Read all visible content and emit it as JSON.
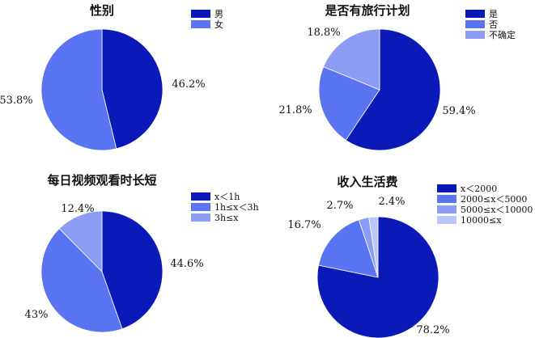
{
  "chart_data": [
    {
      "type": "pie",
      "title": "性别",
      "categories": [
        "男",
        "女"
      ],
      "values": [
        46.2,
        53.8
      ],
      "labels": [
        "46.2%",
        "53.8%"
      ],
      "colors": [
        "#0a1ab8",
        "#5874f0"
      ],
      "start_angle_deg": 0,
      "direction": "clockwise",
      "legend_position": "top-right"
    },
    {
      "type": "pie",
      "title": "是否有旅行计划",
      "categories": [
        "是",
        "否",
        "不确定"
      ],
      "values": [
        59.4,
        21.8,
        18.8
      ],
      "labels": [
        "59.4%",
        "21.8%",
        "18.8%"
      ],
      "colors": [
        "#0a1ab8",
        "#5874f0",
        "#8c9cf4"
      ],
      "start_angle_deg": 0,
      "direction": "clockwise",
      "legend_position": "top-right"
    },
    {
      "type": "pie",
      "title": "每日视频观看时长短",
      "categories": [
        "x＜1h",
        "1h≤x＜3h",
        "3h≤x"
      ],
      "values": [
        44.6,
        43,
        12.4
      ],
      "labels": [
        "44.6%",
        "43%",
        "12.4%"
      ],
      "colors": [
        "#0a1ab8",
        "#5874f0",
        "#8c9cf4"
      ],
      "start_angle_deg": 0,
      "direction": "clockwise",
      "legend_position": "top-right"
    },
    {
      "type": "pie",
      "title": "收入生活费",
      "categories": [
        "x＜2000",
        "2000≤x＜5000",
        "5000≤x＜10000",
        "10000≤x"
      ],
      "values": [
        78.2,
        16.7,
        2.7,
        2.4
      ],
      "labels": [
        "78.2%",
        "16.7%",
        "2.7%",
        "2.4%"
      ],
      "colors": [
        "#0a1ab8",
        "#5874f0",
        "#8c9cf4",
        "#bcc6f8"
      ],
      "start_angle_deg": 0,
      "direction": "clockwise",
      "legend_position": "top-right"
    }
  ]
}
